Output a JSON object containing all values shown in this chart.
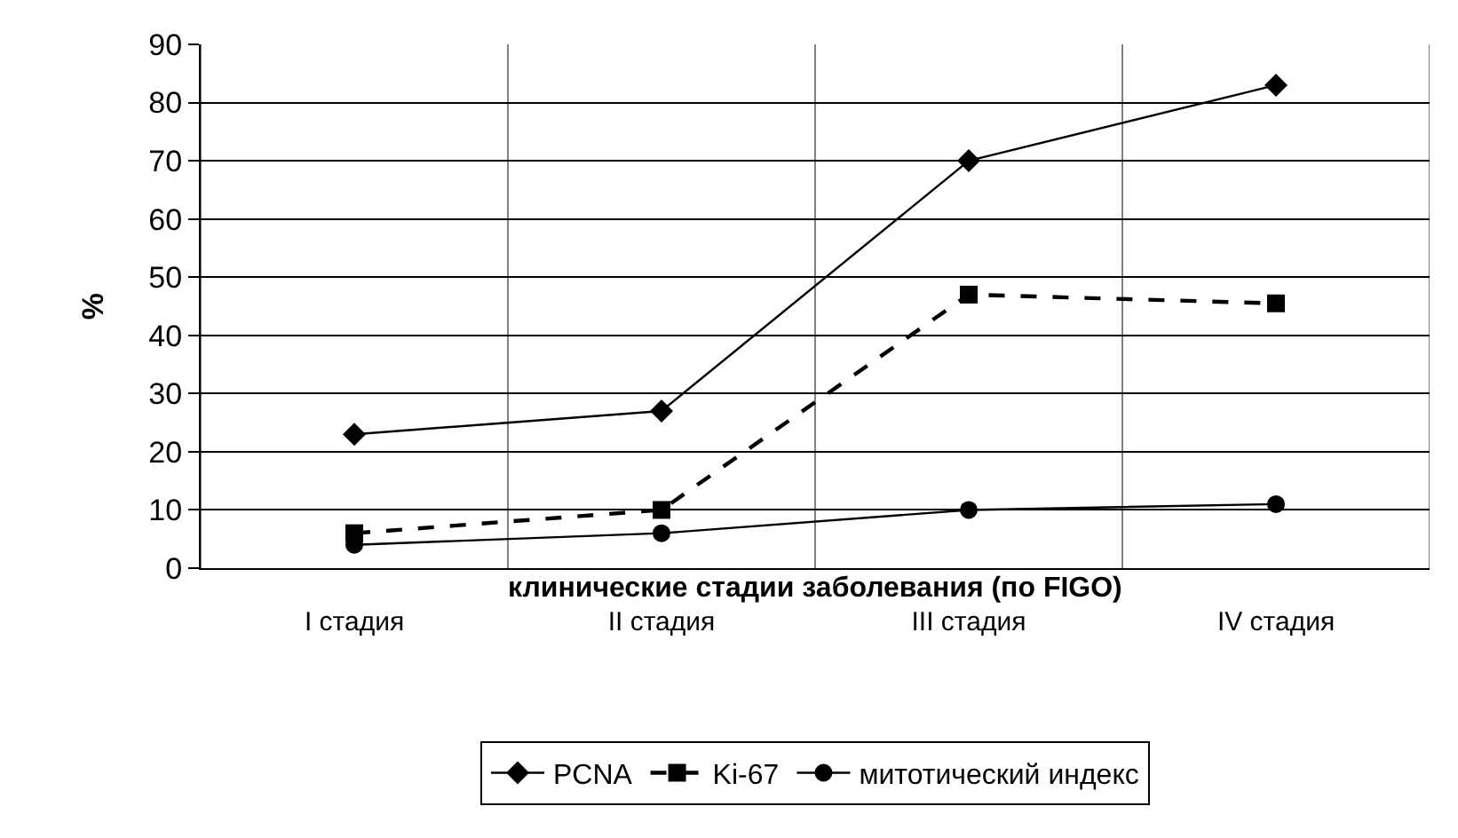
{
  "chart_data": {
    "type": "line",
    "xlabel": "клинические стадии заболевания (по FIGO)",
    "ylabel": "%",
    "categories": [
      "I стадия",
      "II стадия",
      "III стадия",
      "IV стадия"
    ],
    "series": [
      {
        "name": "PCNA",
        "color": "#000000",
        "values": [
          23,
          27,
          70,
          83
        ],
        "marker": "diamond",
        "line_style": "solid"
      },
      {
        "name": "Ki-67",
        "color": "#000000",
        "values": [
          6,
          10,
          47,
          45.5
        ],
        "marker": "square",
        "line_style": "dashed"
      },
      {
        "name": "митотический индекс",
        "color": "#000000",
        "values": [
          4,
          6,
          10,
          11
        ],
        "marker": "circle",
        "line_style": "solid"
      }
    ],
    "ylim": [
      0,
      90
    ],
    "yticks": [
      0,
      10,
      20,
      30,
      40,
      50,
      60,
      70,
      80,
      90
    ],
    "grid": true,
    "legend": "bottom"
  }
}
